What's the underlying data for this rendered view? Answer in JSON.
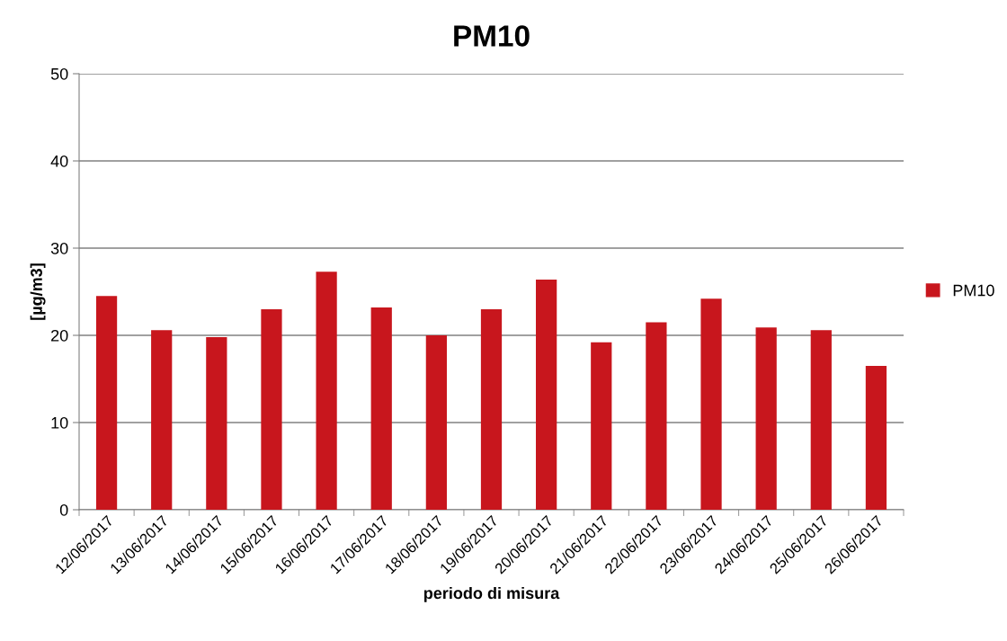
{
  "chart_data": {
    "type": "bar",
    "title": "PM10",
    "xlabel": "periodo di misura",
    "ylabel": "[µg/m3]",
    "categories": [
      "12/06/2017",
      "13/06/2017",
      "14/06/2017",
      "15/06/2017",
      "16/06/2017",
      "17/06/2017",
      "18/06/2017",
      "19/06/2017",
      "20/06/2017",
      "21/06/2017",
      "22/06/2017",
      "23/06/2017",
      "24/06/2017",
      "25/06/2017",
      "26/06/2017"
    ],
    "series": [
      {
        "name": "PM10",
        "color": "#c8161d",
        "values": [
          24.5,
          20.6,
          19.8,
          23.0,
          27.3,
          23.2,
          20.0,
          23.0,
          26.4,
          19.2,
          21.5,
          24.2,
          20.9,
          20.6,
          16.5
        ]
      }
    ],
    "ylim": [
      0,
      50
    ],
    "yticks": [
      0,
      10,
      20,
      30,
      40,
      50
    ],
    "grid": "y",
    "legend": "right"
  }
}
